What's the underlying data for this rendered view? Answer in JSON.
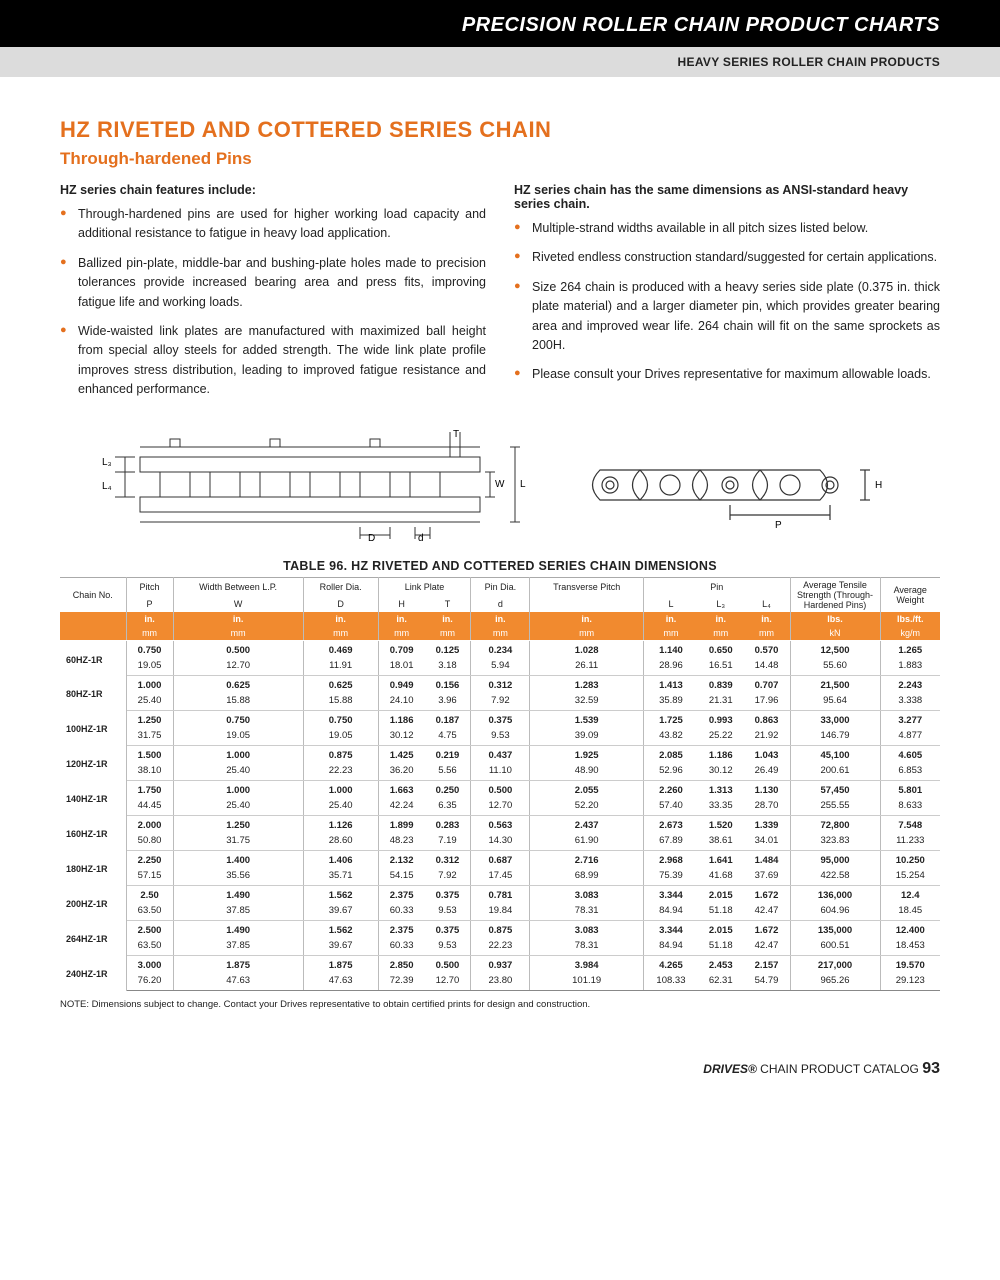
{
  "header": {
    "category": "PRECISION ROLLER CHAIN PRODUCT CHARTS",
    "subcategory": "HEAVY SERIES ROLLER CHAIN PRODUCTS"
  },
  "title": "HZ RIVETED AND COTTERED SERIES CHAIN",
  "subtitle": "Through-hardened Pins",
  "left_lead": "HZ series chain features include:",
  "left_bullets": [
    "Through-hardened pins are used for higher working load capacity and additional resistance to fatigue in heavy load application.",
    "Ballized pin-plate, middle-bar and bushing-plate holes made to precision tolerances provide increased bearing area and press fits, improving fatigue life and working loads.",
    "Wide-waisted link plates are manufactured with maximized ball height from special alloy steels for added strength. The wide link plate profile improves stress distribution, leading to improved fatigue resistance and enhanced performance."
  ],
  "right_lead": "HZ series chain has the same dimensions as ANSI-standard heavy series chain.",
  "right_bullets": [
    "Multiple-strand widths available in all pitch sizes listed below.",
    "Riveted endless construction standard/suggested for certain applications.",
    "Size 264 chain is produced with a heavy series side plate (0.375 in. thick plate material) and a larger diameter pin, which provides greater bearing area and improved wear life. 264 chain will fit on the same sprockets as 200H.",
    "Please consult your Drives representative for maximum allowable loads."
  ],
  "table_title": "TABLE 96. HZ RIVETED AND COTTERED SERIES CHAIN DIMENSIONS",
  "columns": {
    "groups": [
      "Chain No.",
      "Pitch",
      "Width Between L.P.",
      "Roller Dia.",
      "Link Plate",
      "Pin Dia.",
      "Transverse Pitch",
      "Pin",
      "Average Tensile Strength (Through-Hardened Pins)",
      "Average Weight"
    ],
    "sub": [
      "",
      "P",
      "W",
      "D",
      "H",
      "T",
      "d",
      "",
      "L",
      "L₃",
      "L₄",
      "",
      ""
    ],
    "unit_top": [
      "",
      "in.",
      "in.",
      "in.",
      "in.",
      "in.",
      "in.",
      "in.",
      "in.",
      "in.",
      "in.",
      "lbs.",
      "lbs./ft."
    ],
    "unit_bot": [
      "",
      "mm",
      "mm",
      "mm",
      "mm",
      "mm",
      "mm",
      "mm",
      "mm",
      "mm",
      "mm",
      "kN",
      "kg/m"
    ]
  },
  "rows": [
    {
      "no": "60HZ-1R",
      "in": [
        "0.750",
        "0.500",
        "0.469",
        "0.709",
        "0.125",
        "0.234",
        "1.028",
        "1.140",
        "0.650",
        "0.570",
        "12,500",
        "1.265"
      ],
      "mm": [
        "19.05",
        "12.70",
        "11.91",
        "18.01",
        "3.18",
        "5.94",
        "26.11",
        "28.96",
        "16.51",
        "14.48",
        "55.60",
        "1.883"
      ]
    },
    {
      "no": "80HZ-1R",
      "in": [
        "1.000",
        "0.625",
        "0.625",
        "0.949",
        "0.156",
        "0.312",
        "1.283",
        "1.413",
        "0.839",
        "0.707",
        "21,500",
        "2.243"
      ],
      "mm": [
        "25.40",
        "15.88",
        "15.88",
        "24.10",
        "3.96",
        "7.92",
        "32.59",
        "35.89",
        "21.31",
        "17.96",
        "95.64",
        "3.338"
      ]
    },
    {
      "no": "100HZ-1R",
      "in": [
        "1.250",
        "0.750",
        "0.750",
        "1.186",
        "0.187",
        "0.375",
        "1.539",
        "1.725",
        "0.993",
        "0.863",
        "33,000",
        "3.277"
      ],
      "mm": [
        "31.75",
        "19.05",
        "19.05",
        "30.12",
        "4.75",
        "9.53",
        "39.09",
        "43.82",
        "25.22",
        "21.92",
        "146.79",
        "4.877"
      ]
    },
    {
      "no": "120HZ-1R",
      "in": [
        "1.500",
        "1.000",
        "0.875",
        "1.425",
        "0.219",
        "0.437",
        "1.925",
        "2.085",
        "1.186",
        "1.043",
        "45,100",
        "4.605"
      ],
      "mm": [
        "38.10",
        "25.40",
        "22.23",
        "36.20",
        "5.56",
        "11.10",
        "48.90",
        "52.96",
        "30.12",
        "26.49",
        "200.61",
        "6.853"
      ]
    },
    {
      "no": "140HZ-1R",
      "in": [
        "1.750",
        "1.000",
        "1.000",
        "1.663",
        "0.250",
        "0.500",
        "2.055",
        "2.260",
        "1.313",
        "1.130",
        "57,450",
        "5.801"
      ],
      "mm": [
        "44.45",
        "25.40",
        "25.40",
        "42.24",
        "6.35",
        "12.70",
        "52.20",
        "57.40",
        "33.35",
        "28.70",
        "255.55",
        "8.633"
      ]
    },
    {
      "no": "160HZ-1R",
      "in": [
        "2.000",
        "1.250",
        "1.126",
        "1.899",
        "0.283",
        "0.563",
        "2.437",
        "2.673",
        "1.520",
        "1.339",
        "72,800",
        "7.548"
      ],
      "mm": [
        "50.80",
        "31.75",
        "28.60",
        "48.23",
        "7.19",
        "14.30",
        "61.90",
        "67.89",
        "38.61",
        "34.01",
        "323.83",
        "11.233"
      ]
    },
    {
      "no": "180HZ-1R",
      "in": [
        "2.250",
        "1.400",
        "1.406",
        "2.132",
        "0.312",
        "0.687",
        "2.716",
        "2.968",
        "1.641",
        "1.484",
        "95,000",
        "10.250"
      ],
      "mm": [
        "57.15",
        "35.56",
        "35.71",
        "54.15",
        "7.92",
        "17.45",
        "68.99",
        "75.39",
        "41.68",
        "37.69",
        "422.58",
        "15.254"
      ]
    },
    {
      "no": "200HZ-1R",
      "in": [
        "2.50",
        "1.490",
        "1.562",
        "2.375",
        "0.375",
        "0.781",
        "3.083",
        "3.344",
        "2.015",
        "1.672",
        "136,000",
        "12.4"
      ],
      "mm": [
        "63.50",
        "37.85",
        "39.67",
        "60.33",
        "9.53",
        "19.84",
        "78.31",
        "84.94",
        "51.18",
        "42.47",
        "604.96",
        "18.45"
      ]
    },
    {
      "no": "264HZ-1R",
      "in": [
        "2.500",
        "1.490",
        "1.562",
        "2.375",
        "0.375",
        "0.875",
        "3.083",
        "3.344",
        "2.015",
        "1.672",
        "135,000",
        "12.400"
      ],
      "mm": [
        "63.50",
        "37.85",
        "39.67",
        "60.33",
        "9.53",
        "22.23",
        "78.31",
        "84.94",
        "51.18",
        "42.47",
        "600.51",
        "18.453"
      ]
    },
    {
      "no": "240HZ-1R",
      "in": [
        "3.000",
        "1.875",
        "1.875",
        "2.850",
        "0.500",
        "0.937",
        "3.984",
        "4.265",
        "2.453",
        "2.157",
        "217,000",
        "19.570"
      ],
      "mm": [
        "76.20",
        "47.63",
        "47.63",
        "72.39",
        "12.70",
        "23.80",
        "101.19",
        "108.33",
        "62.31",
        "54.79",
        "965.26",
        "29.123"
      ]
    }
  ],
  "note": "NOTE: Dimensions subject to change. Contact your Drives representative to obtain certified prints for design and construction.",
  "footer": {
    "brand": "DRIVES®",
    "catalog": "CHAIN PRODUCT CATALOG",
    "page": "93"
  },
  "colors": {
    "accent": "#e4701e",
    "unit_bg": "#f18a2f"
  }
}
